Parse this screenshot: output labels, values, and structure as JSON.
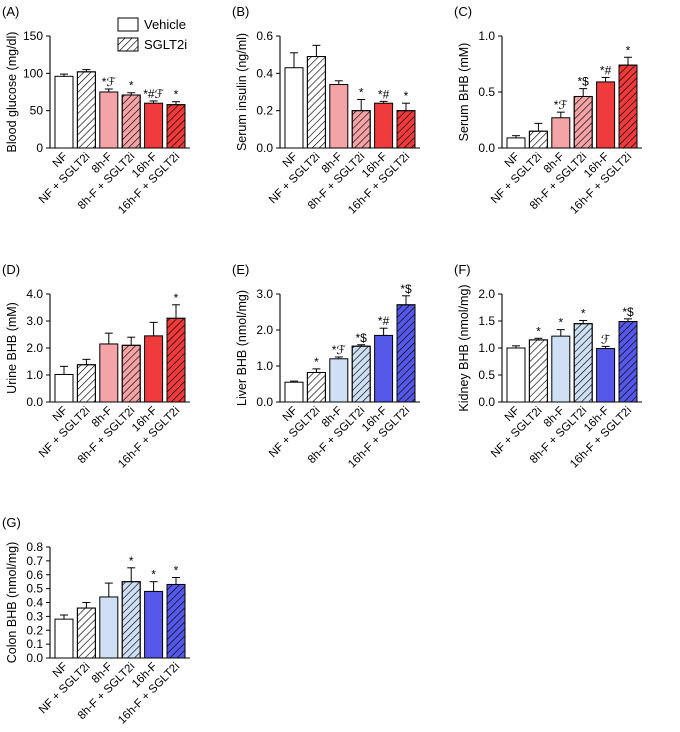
{
  "legend": {
    "vehicle_label": "Vehicle",
    "sglt2i_label": "SGLT2i"
  },
  "colors": {
    "white": "#ffffff",
    "pink": "#f4a3a6",
    "red": "#ef3b3b",
    "lightblue": "#cfe0f5",
    "blue": "#5558e8",
    "hatch_line": "#000000",
    "axis": "#000000"
  },
  "categories": [
    "NF",
    "NF + SGLT2i",
    "8h-F",
    "8h-F + SGLT2i",
    "16h-F",
    "16h-F + SGLT2i"
  ],
  "hatched": [
    false,
    true,
    false,
    true,
    false,
    true
  ],
  "chart_data": [
    {
      "panel": "(A)",
      "type": "bar",
      "ylabel": "Blood glucose (mg/dl)",
      "ylim": [
        0,
        150
      ],
      "yticks": [
        "0",
        "50",
        "100",
        "150"
      ],
      "values": [
        96,
        102,
        75,
        71,
        60,
        58
      ],
      "errors": [
        3,
        3,
        4,
        3,
        3,
        4
      ],
      "annotations": [
        "",
        "",
        "*ℱ",
        "*",
        "*#ℱ",
        "*"
      ],
      "color_scheme": "red"
    },
    {
      "panel": "(B)",
      "type": "bar",
      "ylabel": "Serum insulin (ng/ml)",
      "ylim": [
        0,
        0.6
      ],
      "yticks": [
        "0.0",
        "0.2",
        "0.4",
        "0.6"
      ],
      "values": [
        0.43,
        0.49,
        0.34,
        0.2,
        0.24,
        0.2
      ],
      "errors": [
        0.08,
        0.06,
        0.02,
        0.06,
        0.01,
        0.04
      ],
      "annotations": [
        "",
        "",
        "",
        "*",
        "*#",
        "*"
      ],
      "color_scheme": "red"
    },
    {
      "panel": "(C)",
      "type": "bar",
      "ylabel": "Serum BHB (mM)",
      "ylim": [
        0,
        1.0
      ],
      "yticks": [
        "0.0",
        "0.5",
        "1.0"
      ],
      "values": [
        0.09,
        0.15,
        0.27,
        0.46,
        0.59,
        0.74
      ],
      "errors": [
        0.02,
        0.07,
        0.05,
        0.07,
        0.04,
        0.07
      ],
      "annotations": [
        "",
        "",
        "*ℱ",
        "*$",
        "*#",
        "*"
      ],
      "color_scheme": "red"
    },
    {
      "panel": "(D)",
      "type": "bar",
      "ylabel": "Urine BHB (mM)",
      "ylim": [
        0,
        4.0
      ],
      "yticks": [
        "0.0",
        "1.0",
        "2.0",
        "3.0",
        "4.0"
      ],
      "values": [
        1.02,
        1.38,
        2.15,
        2.1,
        2.45,
        3.1
      ],
      "errors": [
        0.3,
        0.2,
        0.4,
        0.3,
        0.5,
        0.5
      ],
      "annotations": [
        "",
        "",
        "",
        "",
        "",
        "*"
      ],
      "color_scheme": "red"
    },
    {
      "panel": "(E)",
      "type": "bar",
      "ylabel": "Liver BHB (nmol/mg)",
      "ylim": [
        0,
        3.0
      ],
      "yticks": [
        "0.0",
        "1.0",
        "2.0",
        "3.0"
      ],
      "values": [
        0.55,
        0.82,
        1.2,
        1.55,
        1.85,
        2.7
      ],
      "errors": [
        0.03,
        0.1,
        0.05,
        0.04,
        0.2,
        0.25
      ],
      "annotations": [
        "",
        "*",
        "*ℱ",
        "*$",
        "*#",
        "*$"
      ],
      "color_scheme": "blue"
    },
    {
      "panel": "(F)",
      "type": "bar",
      "ylabel": "Kidney BHB (nmol/mg)",
      "ylim": [
        0,
        2.0
      ],
      "yticks": [
        "0.0",
        "0.5",
        "1.0",
        "1.5",
        "2.0"
      ],
      "values": [
        1.0,
        1.15,
        1.22,
        1.45,
        0.99,
        1.49
      ],
      "errors": [
        0.04,
        0.03,
        0.12,
        0.06,
        0.04,
        0.05
      ],
      "annotations": [
        "",
        "*",
        "*",
        "*",
        "ℱ",
        "*$"
      ],
      "color_scheme": "blue"
    },
    {
      "panel": "(G)",
      "type": "bar",
      "ylabel": "Colon BHB (nmol/mg)",
      "ylim": [
        0,
        0.8
      ],
      "yticks": [
        "0.0",
        "0.1",
        "0.2",
        "0.3",
        "0.4",
        "0.5",
        "0.6",
        "0.7",
        "0.8"
      ],
      "values": [
        0.28,
        0.36,
        0.44,
        0.55,
        0.48,
        0.53
      ],
      "errors": [
        0.03,
        0.04,
        0.1,
        0.1,
        0.07,
        0.05
      ],
      "annotations": [
        "",
        "",
        "",
        "*",
        "*",
        "*"
      ],
      "color_scheme": "blue"
    }
  ]
}
